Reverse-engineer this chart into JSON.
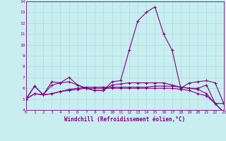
{
  "xlabel": "Windchill (Refroidissement éolien,°C)",
  "xlim": [
    0,
    23
  ],
  "ylim": [
    4,
    14
  ],
  "yticks": [
    4,
    5,
    6,
    7,
    8,
    9,
    10,
    11,
    12,
    13,
    14
  ],
  "xticks": [
    0,
    1,
    2,
    3,
    4,
    5,
    6,
    7,
    8,
    9,
    10,
    11,
    12,
    13,
    14,
    15,
    16,
    17,
    18,
    19,
    20,
    21,
    22,
    23
  ],
  "background_color": "#c8eef0",
  "grid_color": "#aadddf",
  "line_color": "#800080",
  "line_width": 0.8,
  "marker": "+",
  "marker_size": 3,
  "marker_edge_width": 0.8,
  "tick_fontsize": 4.5,
  "xlabel_fontsize": 5.5,
  "series": [
    [
      5.0,
      6.2,
      5.4,
      6.6,
      6.5,
      7.0,
      6.3,
      6.0,
      5.8,
      5.8,
      6.6,
      6.7,
      9.5,
      12.2,
      13.0,
      13.5,
      11.0,
      9.5,
      6.0,
      6.5,
      6.6,
      6.7,
      6.5,
      4.6
    ],
    [
      5.0,
      6.2,
      5.4,
      6.3,
      6.5,
      6.6,
      6.3,
      6.0,
      5.8,
      5.8,
      6.3,
      6.4,
      6.5,
      6.5,
      6.5,
      6.5,
      6.5,
      6.3,
      6.1,
      6.0,
      6.0,
      6.3,
      4.6,
      4.6
    ],
    [
      5.0,
      5.5,
      5.4,
      5.5,
      5.7,
      5.8,
      5.9,
      6.0,
      6.0,
      6.0,
      6.0,
      6.0,
      6.0,
      6.0,
      6.0,
      6.0,
      6.0,
      6.0,
      5.9,
      5.8,
      5.5,
      5.3,
      4.6,
      3.8
    ],
    [
      5.0,
      5.5,
      5.4,
      5.5,
      5.7,
      5.9,
      6.0,
      6.1,
      6.1,
      6.1,
      6.1,
      6.1,
      6.1,
      6.1,
      6.1,
      6.2,
      6.2,
      6.2,
      6.1,
      6.0,
      5.9,
      5.5,
      4.6,
      3.8
    ]
  ]
}
